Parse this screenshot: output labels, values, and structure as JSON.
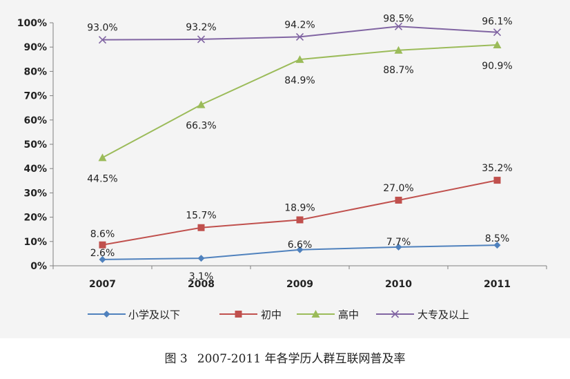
{
  "chart_data": {
    "type": "line",
    "categories": [
      "2007",
      "2008",
      "2009",
      "2010",
      "2011"
    ],
    "ylim": [
      0,
      100
    ],
    "yticks": [
      0,
      10,
      20,
      30,
      40,
      50,
      60,
      70,
      80,
      90,
      100
    ],
    "ytick_labels": [
      "0%",
      "10%",
      "20%",
      "30%",
      "40%",
      "50%",
      "60%",
      "70%",
      "80%",
      "90%",
      "100%"
    ],
    "legend_position": "bottom",
    "grid": false,
    "series": [
      {
        "name": "小学及以下",
        "color": "#4f81bd",
        "marker": "diamond",
        "values": [
          2.6,
          3.1,
          6.6,
          7.7,
          8.5
        ],
        "labels": [
          "2.6%",
          "3.1%",
          "6.6%",
          "7.7%",
          "8.5%"
        ]
      },
      {
        "name": "初中",
        "color": "#c0504d",
        "marker": "square",
        "values": [
          8.6,
          15.7,
          18.9,
          27.0,
          35.2
        ],
        "labels": [
          "8.6%",
          "15.7%",
          "18.9%",
          "27.0%",
          "35.2%"
        ]
      },
      {
        "name": "高中",
        "color": "#9bbb59",
        "marker": "triangle",
        "values": [
          44.5,
          66.3,
          84.9,
          88.7,
          90.9
        ],
        "labels": [
          "44.5%",
          "66.3%",
          "84.9%",
          "88.7%",
          "90.9%"
        ]
      },
      {
        "name": "大专及以上",
        "color": "#8064a2",
        "marker": "x",
        "values": [
          93.0,
          93.2,
          94.2,
          98.5,
          96.1
        ],
        "labels": [
          "93.0%",
          "93.2%",
          "94.2%",
          "98.5%",
          "96.1%"
        ]
      }
    ]
  },
  "caption": {
    "figure": "图 3",
    "text": "2007-2011 年各学历人群互联网普及率"
  }
}
